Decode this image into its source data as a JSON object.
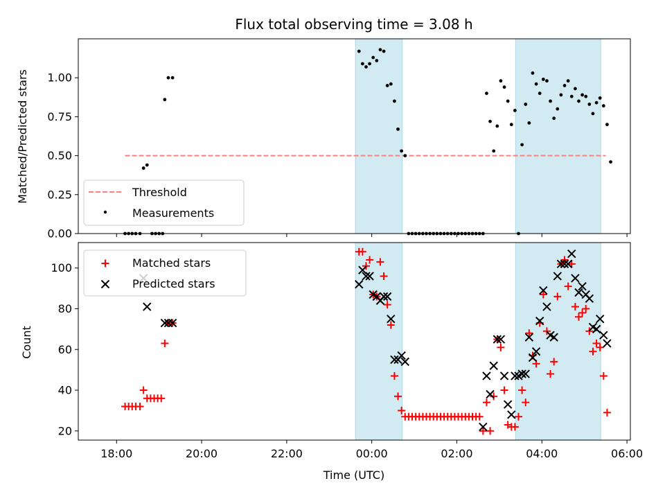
{
  "title": "Flux total observing time = 3.08 h",
  "xlabel": "Time (UTC)",
  "x_ticks": [
    "18:00",
    "20:00",
    "22:00",
    "00:00",
    "02:00",
    "04:00",
    "06:00"
  ],
  "shaded_intervals": [
    {
      "start": "23:37",
      "end": "00:43"
    },
    {
      "start": "03:23",
      "end": "05:23"
    }
  ],
  "colors": {
    "shade": "#add8e6",
    "threshold": "#ff7f7f",
    "measurements": "#000000",
    "matched": "#ff0000",
    "predicted": "#000000"
  },
  "chart_data": [
    {
      "type": "scatter",
      "ylabel": "Matched/Predicted stars",
      "ylim": [
        0,
        1.25
      ],
      "y_ticks": [
        "0.00",
        "0.25",
        "0.50",
        "0.75",
        "1.00"
      ],
      "legend_position": "lower-left",
      "threshold": {
        "name": "Threshold",
        "value": 0.5,
        "x_range": [
          "18:12",
          "05:30"
        ]
      },
      "series": [
        {
          "name": "Measurements",
          "points": [
            [
              "18:12",
              0
            ],
            [
              "18:17",
              0
            ],
            [
              "18:22",
              0
            ],
            [
              "18:27",
              0
            ],
            [
              "18:33",
              0
            ],
            [
              "18:38",
              0.42
            ],
            [
              "18:43",
              0.44
            ],
            [
              "18:50",
              0
            ],
            [
              "18:55",
              0
            ],
            [
              "19:00",
              0
            ],
            [
              "19:05",
              0
            ],
            [
              "19:08",
              0.86
            ],
            [
              "19:13",
              1.0
            ],
            [
              "19:19",
              1.0
            ],
            [
              "23:42",
              1.17
            ],
            [
              "23:47",
              1.09
            ],
            [
              "23:52",
              1.07
            ],
            [
              "23:57",
              1.09
            ],
            [
              "00:02",
              1.13
            ],
            [
              "00:07",
              1.11
            ],
            [
              "00:12",
              1.18
            ],
            [
              "00:17",
              1.17
            ],
            [
              "00:22",
              0.95
            ],
            [
              "00:27",
              0.96
            ],
            [
              "00:32",
              0.85
            ],
            [
              "00:37",
              0.67
            ],
            [
              "00:42",
              0.53
            ],
            [
              "00:47",
              0.5
            ],
            [
              "00:52",
              0
            ],
            [
              "00:57",
              0
            ],
            [
              "01:02",
              0
            ],
            [
              "01:07",
              0
            ],
            [
              "01:12",
              0
            ],
            [
              "01:17",
              0
            ],
            [
              "01:22",
              0
            ],
            [
              "01:27",
              0
            ],
            [
              "01:32",
              0
            ],
            [
              "01:37",
              0
            ],
            [
              "01:42",
              0
            ],
            [
              "01:47",
              0
            ],
            [
              "01:52",
              0
            ],
            [
              "01:57",
              0
            ],
            [
              "02:02",
              0
            ],
            [
              "02:07",
              0
            ],
            [
              "02:12",
              0
            ],
            [
              "02:17",
              0
            ],
            [
              "02:22",
              0
            ],
            [
              "02:27",
              0
            ],
            [
              "02:32",
              0
            ],
            [
              "02:37",
              0
            ],
            [
              "02:42",
              0.9
            ],
            [
              "02:47",
              0.72
            ],
            [
              "02:52",
              0.53
            ],
            [
              "02:57",
              0.69
            ],
            [
              "03:02",
              0.98
            ],
            [
              "03:07",
              0.94
            ],
            [
              "03:12",
              0.85
            ],
            [
              "03:17",
              0.7
            ],
            [
              "03:22",
              0.79
            ],
            [
              "03:27",
              0
            ],
            [
              "03:32",
              0.57
            ],
            [
              "03:37",
              0.83
            ],
            [
              "03:42",
              0.71
            ],
            [
              "03:47",
              1.03
            ],
            [
              "03:52",
              0.96
            ],
            [
              "03:57",
              0.9
            ],
            [
              "04:02",
              0.99
            ],
            [
              "04:07",
              0.98
            ],
            [
              "04:12",
              0.85
            ],
            [
              "04:17",
              0.74
            ],
            [
              "04:22",
              0.8
            ],
            [
              "04:27",
              0.89
            ],
            [
              "04:32",
              0.95
            ],
            [
              "04:37",
              0.98
            ],
            [
              "04:42",
              0.88
            ],
            [
              "04:47",
              0.93
            ],
            [
              "04:52",
              0.85
            ],
            [
              "04:57",
              0.89
            ],
            [
              "05:02",
              0.88
            ],
            [
              "05:07",
              0.83
            ],
            [
              "05:12",
              0.77
            ],
            [
              "05:17",
              0.84
            ],
            [
              "05:22",
              0.87
            ],
            [
              "05:27",
              0.82
            ],
            [
              "05:32",
              0.7
            ],
            [
              "05:37",
              0.46
            ]
          ]
        }
      ]
    },
    {
      "type": "scatter",
      "ylabel": "Count",
      "ylim": [
        15.5,
        112.5
      ],
      "y_ticks": [
        "20",
        "40",
        "60",
        "80",
        "100"
      ],
      "legend_position": "upper-left",
      "series": [
        {
          "name": "Matched stars",
          "marker": "+",
          "points": [
            [
              "18:12",
              32
            ],
            [
              "18:17",
              32
            ],
            [
              "18:22",
              32
            ],
            [
              "18:27",
              32
            ],
            [
              "18:33",
              32
            ],
            [
              "18:38",
              40
            ],
            [
              "18:43",
              36
            ],
            [
              "18:48",
              36
            ],
            [
              "18:53",
              36
            ],
            [
              "18:58",
              36
            ],
            [
              "19:03",
              36
            ],
            [
              "19:08",
              63
            ],
            [
              "19:13",
              73
            ],
            [
              "19:19",
              73
            ],
            [
              "23:42",
              108
            ],
            [
              "23:47",
              108
            ],
            [
              "23:52",
              101
            ],
            [
              "23:57",
              104
            ],
            [
              "24:02",
              87
            ],
            [
              "24:07",
              86
            ],
            [
              "24:12",
              103
            ],
            [
              "24:17",
              96
            ],
            [
              "24:22",
              82
            ],
            [
              "24:27",
              72
            ],
            [
              "24:32",
              47
            ],
            [
              "24:37",
              37
            ],
            [
              "24:42",
              30
            ],
            [
              "24:47",
              27
            ],
            [
              "24:52",
              27
            ],
            [
              "24:57",
              27
            ],
            [
              "25:02",
              27
            ],
            [
              "25:07",
              27
            ],
            [
              "25:12",
              27
            ],
            [
              "25:17",
              27
            ],
            [
              "25:22",
              27
            ],
            [
              "25:27",
              27
            ],
            [
              "25:32",
              27
            ],
            [
              "25:37",
              27
            ],
            [
              "25:42",
              27
            ],
            [
              "25:47",
              27
            ],
            [
              "25:52",
              27
            ],
            [
              "25:57",
              27
            ],
            [
              "26:02",
              27
            ],
            [
              "26:07",
              27
            ],
            [
              "26:12",
              27
            ],
            [
              "26:17",
              27
            ],
            [
              "26:22",
              27
            ],
            [
              "26:27",
              27
            ],
            [
              "26:32",
              27
            ],
            [
              "26:37",
              20
            ],
            [
              "26:42",
              34
            ],
            [
              "26:47",
              20
            ],
            [
              "26:52",
              37
            ],
            [
              "26:57",
              65
            ],
            [
              "27:02",
              61
            ],
            [
              "27:07",
              40
            ],
            [
              "27:12",
              23
            ],
            [
              "27:17",
              22
            ],
            [
              "27:22",
              22
            ],
            [
              "27:27",
              27
            ],
            [
              "27:32",
              40
            ],
            [
              "27:37",
              34
            ],
            [
              "27:42",
              68
            ],
            [
              "27:47",
              57
            ],
            [
              "27:52",
              53
            ],
            [
              "27:57",
              73
            ],
            [
              "28:02",
              87
            ],
            [
              "28:07",
              69
            ],
            [
              "28:12",
              48
            ],
            [
              "28:17",
              54
            ],
            [
              "28:22",
              86
            ],
            [
              "28:27",
              102
            ],
            [
              "28:32",
              104
            ],
            [
              "28:37",
              91
            ],
            [
              "28:42",
              102
            ],
            [
              "28:47",
              81
            ],
            [
              "28:52",
              76
            ],
            [
              "28:57",
              78
            ],
            [
              "29:02",
              80
            ],
            [
              "29:07",
              69
            ],
            [
              "29:12",
              59
            ],
            [
              "29:17",
              63
            ],
            [
              "29:22",
              61
            ],
            [
              "29:27",
              47
            ],
            [
              "29:32",
              29
            ]
          ]
        },
        {
          "name": "Predicted stars",
          "marker": "x",
          "points": [
            [
              "18:38",
              95
            ],
            [
              "18:43",
              81
            ],
            [
              "19:08",
              73
            ],
            [
              "19:13",
              73
            ],
            [
              "19:19",
              73
            ],
            [
              "23:42",
              92
            ],
            [
              "23:47",
              99
            ],
            [
              "23:52",
              96
            ],
            [
              "23:57",
              96
            ],
            [
              "24:02",
              87
            ],
            [
              "24:07",
              86
            ],
            [
              "24:12",
              84
            ],
            [
              "24:17",
              86
            ],
            [
              "24:22",
              86
            ],
            [
              "24:27",
              75
            ],
            [
              "24:32",
              55
            ],
            [
              "24:37",
              55
            ],
            [
              "24:42",
              57
            ],
            [
              "24:47",
              54
            ],
            [
              "26:37",
              22
            ],
            [
              "26:42",
              47
            ],
            [
              "26:47",
              38
            ],
            [
              "26:52",
              52
            ],
            [
              "26:57",
              65
            ],
            [
              "27:02",
              65
            ],
            [
              "27:07",
              47
            ],
            [
              "27:12",
              33
            ],
            [
              "27:17",
              28
            ],
            [
              "27:22",
              47
            ],
            [
              "27:27",
              47
            ],
            [
              "27:32",
              48
            ],
            [
              "27:37",
              48
            ],
            [
              "27:42",
              66
            ],
            [
              "27:47",
              56
            ],
            [
              "27:52",
              59
            ],
            [
              "27:57",
              74
            ],
            [
              "28:02",
              89
            ],
            [
              "28:07",
              81
            ],
            [
              "28:12",
              67
            ],
            [
              "28:17",
              66
            ],
            [
              "28:22",
              96
            ],
            [
              "28:27",
              102
            ],
            [
              "28:32",
              102
            ],
            [
              "28:37",
              102
            ],
            [
              "28:42",
              107
            ],
            [
              "28:47",
              95
            ],
            [
              "28:52",
              88
            ],
            [
              "28:57",
              91
            ],
            [
              "29:02",
              87
            ],
            [
              "29:07",
              85
            ],
            [
              "29:12",
              71
            ],
            [
              "29:17",
              70
            ],
            [
              "29:22",
              75
            ],
            [
              "29:27",
              67
            ],
            [
              "29:32",
              63
            ]
          ]
        }
      ]
    }
  ]
}
